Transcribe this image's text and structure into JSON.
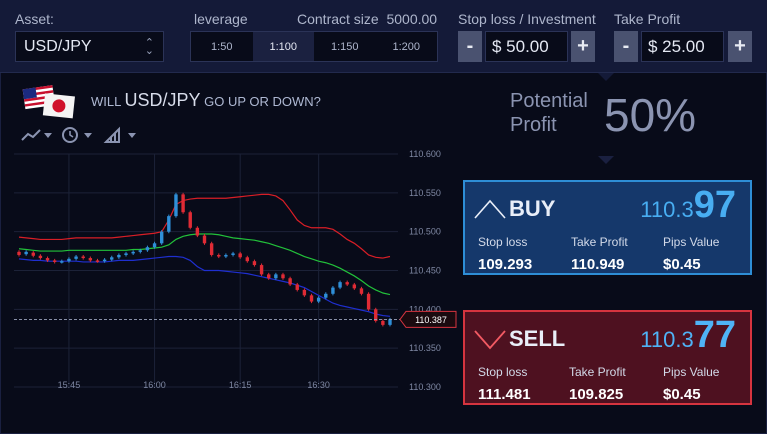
{
  "asset": {
    "label": "Asset:",
    "selected": "USD/JPY"
  },
  "leverage": {
    "label": "leverage",
    "options": [
      "1:50",
      "1:100",
      "1:150",
      "1:200"
    ],
    "active_index": 1
  },
  "contract_size": {
    "label": "Contract size",
    "value": "5000.00"
  },
  "stop_loss": {
    "label": "Stop loss / Investment",
    "value": "$ 50.00",
    "minus": "-",
    "plus": "+"
  },
  "take_profit": {
    "label": "Take Profit",
    "value": "$ 25.00",
    "minus": "-",
    "plus": "+"
  },
  "question": {
    "prefix": "WILL",
    "asset": "USD/JPY",
    "suffix": "GO UP OR DOWN?"
  },
  "potential_profit": {
    "label": "Potential Profit",
    "value": "50%"
  },
  "buy": {
    "label": "BUY",
    "price_prefix": "110.3",
    "price_suffix": "97",
    "stop_loss_label": "Stop loss",
    "stop_loss": "109.293",
    "take_profit_label": "Take Profit",
    "take_profit": "110.949",
    "pips_label": "Pips Value",
    "pips": "$0.45"
  },
  "sell": {
    "label": "SELL",
    "price_prefix": "110.3",
    "price_suffix": "77",
    "stop_loss_label": "Stop loss",
    "stop_loss": "111.481",
    "take_profit_label": "Take Profit",
    "take_profit": "109.825",
    "pips_label": "Pips Value",
    "pips": "$0.45"
  },
  "colors": {
    "up": "#2f8fd8",
    "down": "#e02b35",
    "band_upper": "#d81e26",
    "band_mid": "#22c13a",
    "band_lower": "#1f2fd0",
    "grid": "#1c2238"
  },
  "chart_data": {
    "type": "line",
    "title": "",
    "xlabel": "",
    "ylabel": "",
    "x_ticks": [
      "15:45",
      "16:00",
      "16:15",
      "16:30"
    ],
    "y_ticks": [
      "110.600",
      "110.550",
      "110.500",
      "110.450",
      "110.400",
      "110.350",
      "110.300"
    ],
    "ylim": [
      110.3,
      110.6
    ],
    "current_price": "110.387",
    "candles": [
      [
        110.474,
        110.47
      ],
      [
        110.471,
        110.474
      ],
      [
        110.473,
        110.469
      ],
      [
        110.469,
        110.466
      ],
      [
        110.466,
        110.463
      ],
      [
        110.463,
        110.461
      ],
      [
        110.461,
        110.462
      ],
      [
        110.462,
        110.465
      ],
      [
        110.465,
        110.468
      ],
      [
        110.468,
        110.466
      ],
      [
        110.466,
        110.463
      ],
      [
        110.463,
        110.462
      ],
      [
        110.462,
        110.464
      ],
      [
        110.464,
        110.467
      ],
      [
        110.467,
        110.47
      ],
      [
        110.47,
        110.472
      ],
      [
        110.472,
        110.474
      ],
      [
        110.474,
        110.476
      ],
      [
        110.476,
        110.48
      ],
      [
        110.48,
        110.485
      ],
      [
        110.485,
        110.5
      ],
      [
        110.5,
        110.52
      ],
      [
        110.52,
        110.548
      ],
      [
        110.548,
        110.525
      ],
      [
        110.525,
        110.505
      ],
      [
        110.505,
        110.495
      ],
      [
        110.495,
        110.485
      ],
      [
        110.485,
        110.47
      ],
      [
        110.47,
        110.468
      ],
      [
        110.468,
        110.47
      ],
      [
        110.47,
        110.472
      ],
      [
        110.472,
        110.467
      ],
      [
        110.467,
        110.462
      ],
      [
        110.462,
        110.457
      ],
      [
        110.457,
        110.445
      ],
      [
        110.445,
        110.44
      ],
      [
        110.44,
        110.445
      ],
      [
        110.445,
        110.44
      ],
      [
        110.44,
        110.432
      ],
      [
        110.432,
        110.425
      ],
      [
        110.425,
        110.418
      ],
      [
        110.418,
        110.41
      ],
      [
        110.41,
        110.415
      ],
      [
        110.415,
        110.42
      ],
      [
        110.42,
        110.428
      ],
      [
        110.428,
        110.435
      ],
      [
        110.435,
        110.432
      ],
      [
        110.432,
        110.427
      ],
      [
        110.427,
        110.42
      ],
      [
        110.42,
        110.4
      ],
      [
        110.4,
        110.385
      ],
      [
        110.385,
        110.38
      ],
      [
        110.38,
        110.387
      ]
    ],
    "series": [
      {
        "name": "",
        "values": [
          110.493,
          110.492,
          110.491,
          110.49,
          110.49,
          110.49,
          110.49,
          110.491,
          110.492,
          110.492,
          110.492,
          110.492,
          110.492,
          110.492,
          110.493,
          110.494,
          110.495,
          110.496,
          110.497,
          110.498,
          110.5,
          110.515,
          110.535,
          110.54,
          110.542,
          110.543,
          110.543,
          110.543,
          110.543,
          110.543,
          110.544,
          110.545,
          110.546,
          110.547,
          110.548,
          110.548,
          110.546,
          110.54,
          110.528,
          110.515,
          110.508,
          110.505,
          110.505,
          110.505,
          110.503,
          110.497,
          110.49,
          110.485,
          110.478,
          110.47,
          110.467,
          110.466,
          110.468
        ]
      },
      {
        "name": "",
        "values": [
          110.478,
          110.477,
          110.476,
          110.475,
          110.475,
          110.475,
          110.475,
          110.476,
          110.476,
          110.476,
          110.476,
          110.476,
          110.476,
          110.476,
          110.476,
          110.476,
          110.477,
          110.477,
          110.478,
          110.479,
          110.48,
          110.483,
          110.49,
          110.494,
          110.496,
          110.497,
          110.497,
          110.497,
          110.496,
          110.494,
          110.492,
          110.491,
          110.49,
          110.489,
          110.487,
          110.485,
          110.482,
          110.479,
          110.476,
          110.472,
          110.468,
          110.465,
          110.462,
          110.46,
          110.457,
          110.453,
          110.448,
          110.443,
          110.437,
          110.43,
          110.425,
          110.421,
          110.419
        ]
      },
      {
        "name": "",
        "values": [
          110.465,
          110.464,
          110.463,
          110.463,
          110.462,
          110.462,
          110.462,
          110.462,
          110.462,
          110.461,
          110.461,
          110.461,
          110.461,
          110.462,
          110.463,
          110.463,
          110.463,
          110.464,
          110.465,
          110.466,
          110.467,
          110.468,
          110.468,
          110.467,
          110.463,
          110.455,
          110.45,
          110.45,
          110.45,
          110.449,
          110.448,
          110.447,
          110.446,
          110.444,
          110.442,
          110.44,
          110.438,
          110.436,
          110.434,
          110.431,
          110.428,
          110.423,
          110.418,
          110.413,
          110.408,
          110.405,
          110.403,
          110.401,
          110.399,
          110.397,
          110.394,
          110.392,
          110.391
        ]
      }
    ]
  }
}
